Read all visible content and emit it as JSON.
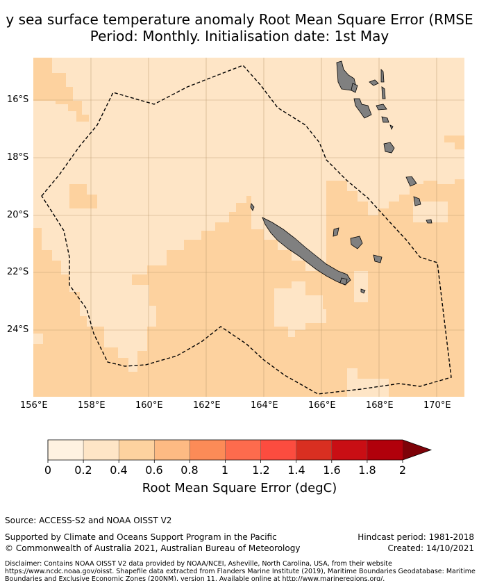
{
  "title": {
    "line1": "y sea surface temperature anomaly Root Mean Square Error (RMSE",
    "line2": "Period: Monthly. Initialisation date: 1st May"
  },
  "map": {
    "x_ticks": [
      "156°E",
      "158°E",
      "160°E",
      "162°E",
      "164°E",
      "166°E",
      "168°E",
      "170°E"
    ],
    "y_ticks": [
      "16°S",
      "18°S",
      "20°S",
      "22°S",
      "24°S"
    ],
    "land_color": "#808080",
    "boundary_style": "dashed",
    "grid": true
  },
  "colorbar": {
    "ticks": [
      "0",
      "0.2",
      "0.4",
      "0.6",
      "0.8",
      "1",
      "1.2",
      "1.4",
      "1.6",
      "1.8",
      "2"
    ],
    "colors": [
      "#fff2e1",
      "#fee5c6",
      "#fdd29f",
      "#fdba83",
      "#fc8b57",
      "#fd6b4d",
      "#fc4c3f",
      "#d92f21",
      "#c90e14",
      "#b1000b",
      "#7e0208"
    ],
    "label": "Root Mean Square Error (degC)",
    "extend": "max"
  },
  "footer": {
    "source": "Source: ACCESS-S2 and NOAA OISST V2",
    "support": "Supported by Climate and Oceans Support Program in the Pacific",
    "copyright": "© Commonwealth of Australia 2021, Australian Bureau of Meteorology",
    "hindcast": "Hindcast period: 1981-2018",
    "created": "Created: 14/10/2021",
    "disclaimer": "Disclaimer: Contains NOAA OISST V2 data provided by NOAA/NCEI, Asheville, North Carolina, USA, from their website https://www.ncdc.noaa.gov/oisst. Shapefile data extracted from Flanders Marine Institute (2019), Maritime Boundaries Geodatabase: Maritime Boundaries and Exclusive Economic Zones (200NM), version 11. Available online at http://www.marineregions.org/."
  }
}
